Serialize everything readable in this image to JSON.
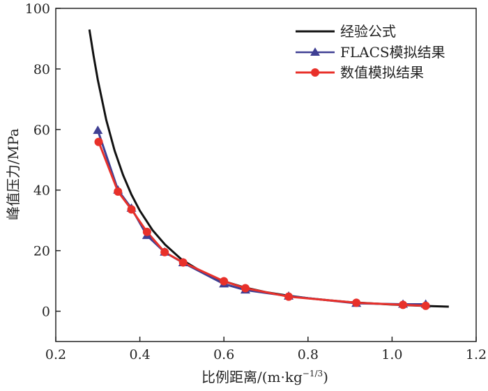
{
  "chart_data": {
    "type": "line",
    "xlabel": "比例距离/(m·kg",
    "xlabel_sup": "−1/3",
    "xlabel_end": ")",
    "ylabel": "峰值压力/MPa",
    "xlim": [
      0.2,
      1.2
    ],
    "ylim": [
      -10,
      100
    ],
    "xticks": [
      "0.2",
      "0.4",
      "0.6",
      "0.8",
      "1.0",
      "1.2"
    ],
    "yticks": [
      "0",
      "20",
      "40",
      "60",
      "80",
      "100"
    ],
    "legend_position": "top-right",
    "series": [
      {
        "name": "经验公式",
        "color": "#111111",
        "marker": "none",
        "x": [
          0.28,
          0.29,
          0.3,
          0.32,
          0.34,
          0.36,
          0.38,
          0.4,
          0.43,
          0.46,
          0.5,
          0.55,
          0.6,
          0.65,
          0.7,
          0.75,
          0.8,
          0.85,
          0.9,
          0.95,
          1.0,
          1.05,
          1.1,
          1.135
        ],
        "y": [
          93.0,
          84.3,
          76.4,
          63.2,
          53.0,
          45.0,
          38.5,
          33.2,
          26.8,
          22.0,
          17.0,
          12.8,
          9.9,
          7.8,
          6.3,
          5.2,
          4.3,
          3.6,
          3.0,
          2.6,
          2.2,
          1.9,
          1.65,
          1.5
        ]
      },
      {
        "name": "FLACS模拟结果",
        "color": "#3f3f93",
        "marker": "triangle",
        "x": [
          0.3,
          0.348,
          0.38,
          0.417,
          0.459,
          0.503,
          0.6,
          0.651,
          0.754,
          0.915,
          1.026,
          1.08
        ],
        "y": [
          59.7,
          40.0,
          34.0,
          25.0,
          19.5,
          16.0,
          9.0,
          7.0,
          5.0,
          2.6,
          2.3,
          2.3
        ]
      },
      {
        "name": "数值模拟结果",
        "color": "#e8302a",
        "marker": "circle",
        "x": [
          0.302,
          0.348,
          0.38,
          0.417,
          0.459,
          0.503,
          0.6,
          0.651,
          0.754,
          0.915,
          1.026,
          1.08
        ],
        "y": [
          55.9,
          39.5,
          33.6,
          26.2,
          19.5,
          16.1,
          9.9,
          7.6,
          4.8,
          2.8,
          2.1,
          1.8
        ]
      }
    ]
  }
}
